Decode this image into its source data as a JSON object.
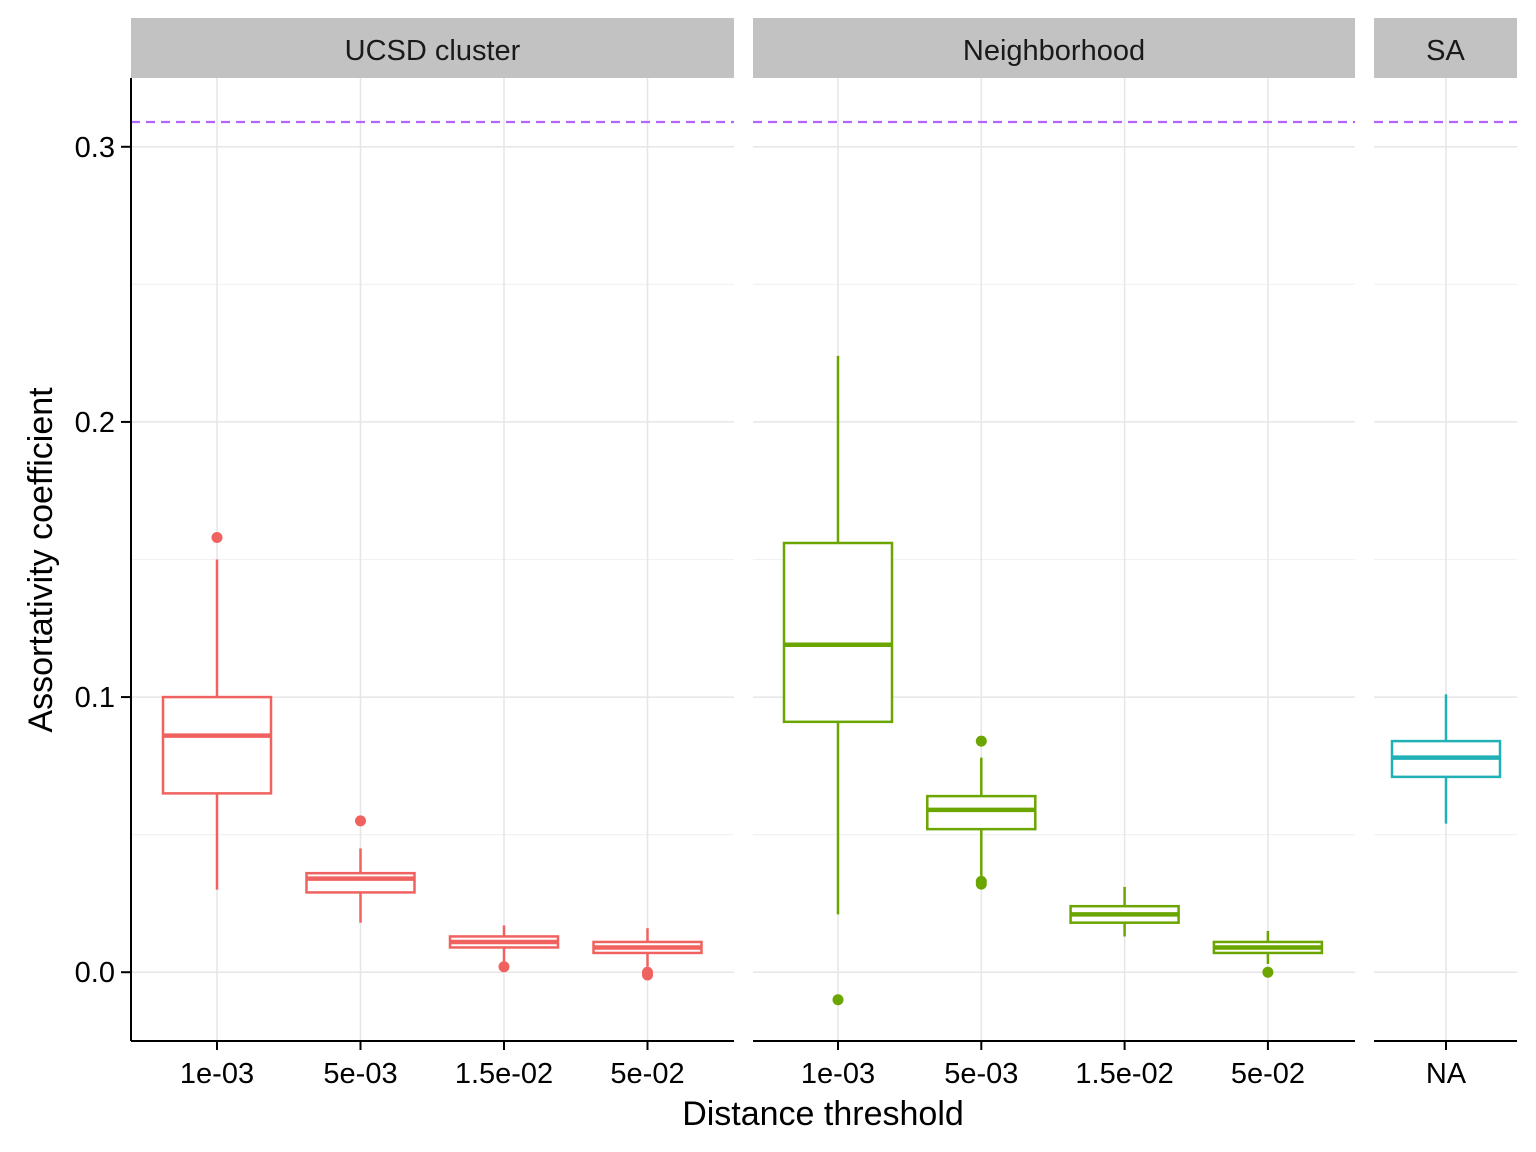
{
  "chart_data": {
    "type": "box",
    "xlabel": "Distance threshold",
    "ylabel": "Assortativity coefficient",
    "ylim": [
      -0.025,
      0.325
    ],
    "yticks": [
      0.0,
      0.1,
      0.2,
      0.3
    ],
    "ytick_labels": [
      "0.0",
      "0.1",
      "0.2",
      "0.3"
    ],
    "reference_line": {
      "y": 0.309,
      "style": "dashed",
      "color": "#b266ff"
    },
    "grid": true,
    "panels": [
      {
        "title": "UCSD cluster",
        "color": "#f0625f",
        "categories": [
          "1e-03",
          "5e-03",
          "1.5e-02",
          "5e-02"
        ],
        "boxes": [
          {
            "q1": 0.065,
            "median": 0.086,
            "q3": 0.1,
            "whisker_low": 0.03,
            "whisker_high": 0.15,
            "outliers": [
              0.158
            ]
          },
          {
            "q1": 0.029,
            "median": 0.034,
            "q3": 0.036,
            "whisker_low": 0.018,
            "whisker_high": 0.045,
            "outliers": [
              0.055
            ]
          },
          {
            "q1": 0.009,
            "median": 0.011,
            "q3": 0.013,
            "whisker_low": 0.003,
            "whisker_high": 0.017,
            "outliers": [
              0.002
            ]
          },
          {
            "q1": 0.007,
            "median": 0.009,
            "q3": 0.011,
            "whisker_low": 0.002,
            "whisker_high": 0.016,
            "outliers": [
              0.0,
              -0.001
            ]
          }
        ]
      },
      {
        "title": "Neighborhood",
        "color": "#6aa500",
        "categories": [
          "1e-03",
          "5e-03",
          "1.5e-02",
          "5e-02"
        ],
        "boxes": [
          {
            "q1": 0.091,
            "median": 0.119,
            "q3": 0.156,
            "whisker_low": 0.021,
            "whisker_high": 0.224,
            "outliers": [
              -0.01
            ]
          },
          {
            "q1": 0.052,
            "median": 0.059,
            "q3": 0.064,
            "whisker_low": 0.035,
            "whisker_high": 0.078,
            "outliers": [
              0.084,
              0.033,
              0.032
            ]
          },
          {
            "q1": 0.018,
            "median": 0.021,
            "q3": 0.024,
            "whisker_low": 0.013,
            "whisker_high": 0.031,
            "outliers": []
          },
          {
            "q1": 0.007,
            "median": 0.009,
            "q3": 0.011,
            "whisker_low": 0.003,
            "whisker_high": 0.015,
            "outliers": [
              0.0
            ]
          }
        ]
      },
      {
        "title": "SA",
        "color": "#20b1b6",
        "categories": [
          "NA"
        ],
        "boxes": [
          {
            "q1": 0.071,
            "median": 0.078,
            "q3": 0.084,
            "whisker_low": 0.054,
            "whisker_high": 0.101,
            "outliers": []
          }
        ]
      }
    ]
  }
}
